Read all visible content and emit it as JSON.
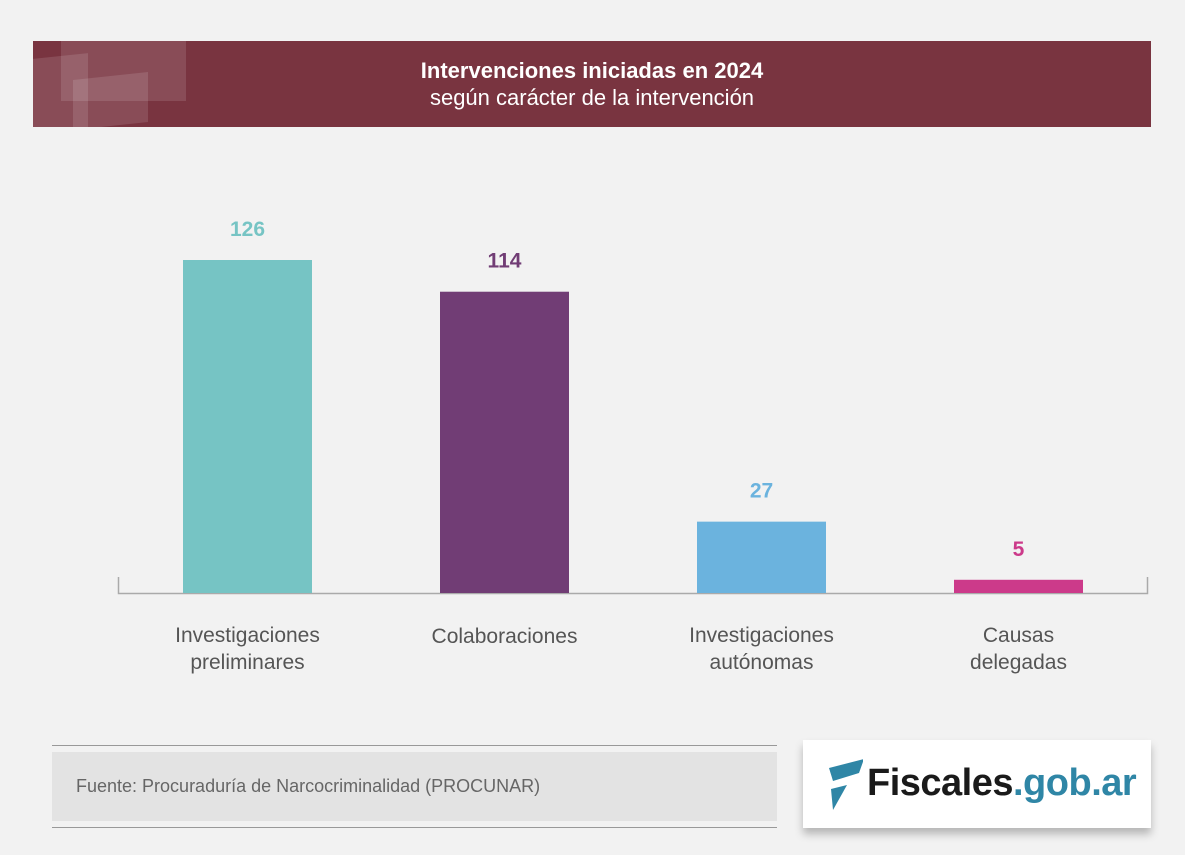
{
  "chart_data": {
    "type": "bar",
    "title": "Intervenciones iniciadas en 2024",
    "subtitle": "según carácter de la intervención",
    "categories": [
      [
        "Investigaciones",
        "preliminares"
      ],
      [
        "Colaboraciones"
      ],
      [
        "Investigaciones",
        "autónomas"
      ],
      [
        "Causas",
        "delegadas"
      ]
    ],
    "values": [
      126,
      114,
      27,
      5
    ],
    "colors": [
      "#76c4c4",
      "#713d75",
      "#6bb3de",
      "#cc3a8a"
    ],
    "ylim": [
      0,
      126
    ],
    "grid": false
  },
  "footer": {
    "source": "Fuente: Procuraduría de Narcocriminalidad (PROCUNAR)"
  },
  "logo": {
    "name": "Fiscales",
    "domain": ".gob.ar",
    "accent": "#2f86a6"
  }
}
